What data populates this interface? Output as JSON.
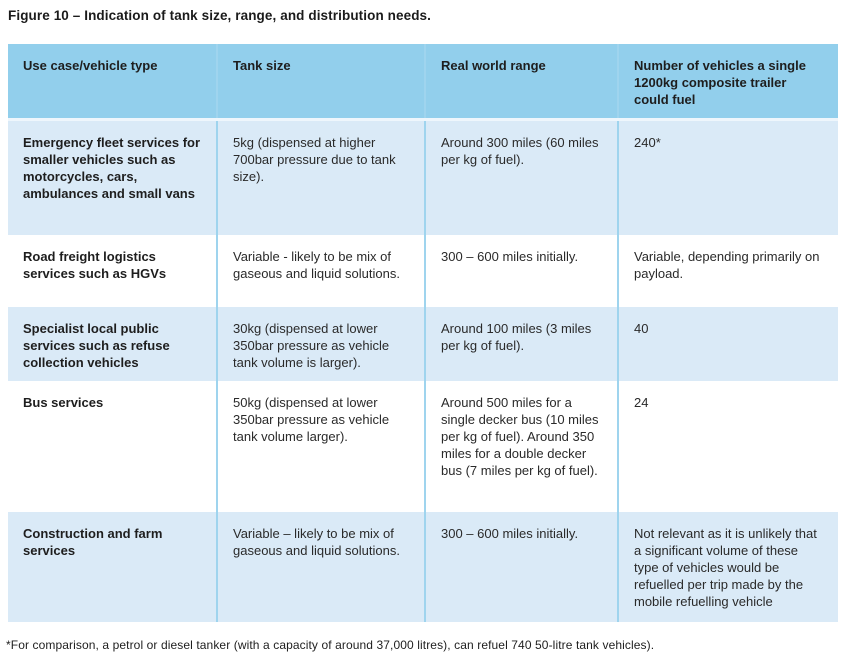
{
  "figure": {
    "title": "Figure 10 – Indication of tank size, range, and distribution needs.",
    "footnote": "*For comparison, a petrol or diesel tanker (with a capacity of around 37,000 litres), can refuel 740 50-litre tank vehicles)."
  },
  "colors": {
    "header_bg": "#92cfec",
    "row_alt_bg": "#daeaf7",
    "row_plain_bg": "#ffffff",
    "column_divider": "#9fd4ee",
    "text": "#1e1e1e"
  },
  "table": {
    "columns": [
      "Use case/vehicle type",
      "Tank size",
      "Real world range",
      "Number of vehicles a single 1200kg composite trailer could fuel"
    ],
    "rows": [
      {
        "use_case": "Emergency fleet services for smaller vehicles such as motorcycles, cars, ambulances and small vans",
        "tank_size": "5kg (dispensed at higher 700bar pressure due to tank size).",
        "range": "Around 300 miles (60 miles per kg of fuel).",
        "vehicles_fueled": "240*"
      },
      {
        "use_case": "Road freight logistics services such as HGVs",
        "tank_size": "Variable - likely to be mix of gaseous and liquid solutions.",
        "range": "300 – 600 miles initially.",
        "vehicles_fueled": "Variable, depending primarily on payload."
      },
      {
        "use_case": "Specialist local public services such as refuse collection vehicles",
        "tank_size": "30kg (dispensed at lower 350bar pressure as vehicle tank volume is larger).",
        "range": "Around 100 miles (3 miles per kg of fuel).",
        "vehicles_fueled": "40"
      },
      {
        "use_case": "Bus services",
        "tank_size": "50kg (dispensed at lower 350bar pressure as vehicle tank volume larger).",
        "range": "Around 500 miles for a single decker bus (10 miles per kg of fuel). Around 350 miles for a double decker bus (7 miles per kg of fuel).",
        "vehicles_fueled": "24"
      },
      {
        "use_case": "Construction and farm services",
        "tank_size": "Variable – likely to be mix of gaseous and liquid solutions.",
        "range": "300 – 600 miles initially.",
        "vehicles_fueled": "Not relevant as it is unlikely that a significant volume of these type of vehicles would be refuelled per trip made by the mobile refuelling vehicle"
      }
    ]
  }
}
